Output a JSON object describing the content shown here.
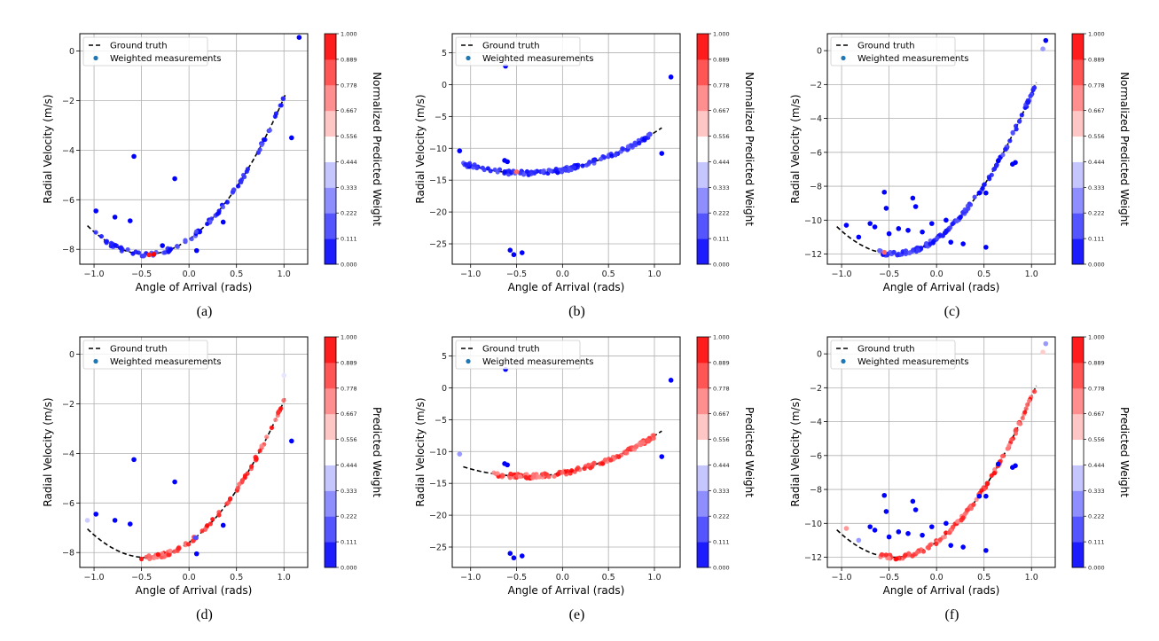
{
  "chart_data": [
    {
      "type": "scatter",
      "caption": "(a)",
      "xlabel": "Angle of Arrival (rads)",
      "ylabel": "Radial Velocity (m/s)",
      "xlim": [
        -1.15,
        1.25
      ],
      "ylim": [
        -8.6,
        0.7
      ],
      "xticks": [
        -1.0,
        -0.5,
        0.0,
        0.5,
        1.0
      ],
      "xtick_labels": [
        "−1.0",
        "−0.5",
        "0.0",
        "0.5",
        "1.0"
      ],
      "yticks": [
        -8,
        -6,
        -4,
        -2,
        0
      ],
      "ytick_labels": [
        "−8",
        "−6",
        "−4",
        "−2",
        "0"
      ],
      "grid": true,
      "legend_location": "top-left",
      "legend": [
        "Ground truth",
        "Weighted measurements"
      ],
      "colorbar_label": "Normalized Predicted Weight",
      "colorbar_ticks": [
        "0.000",
        "0.111",
        "0.222",
        "0.333",
        "0.444",
        "0.556",
        "0.667",
        "0.778",
        "0.889",
        "1.000"
      ],
      "ground_truth": {
        "x_min": -1.07,
        "x_max": 1.02,
        "a": 6.0,
        "b": -0.45,
        "c": -8.2
      },
      "measurement_mode": "low",
      "n_on_curve": 95,
      "on_curve_range": [
        -1.0,
        1.0
      ],
      "highlight_points": [
        {
          "x": -0.37,
          "y": -8.2,
          "w": 1.0
        },
        {
          "x": -0.42,
          "y": -8.22,
          "w": 0.95
        }
      ],
      "outliers": [
        {
          "x": 1.16,
          "y": 0.55,
          "w": 0.0
        },
        {
          "x": 1.08,
          "y": -3.5,
          "w": 0.0
        },
        {
          "x": -0.58,
          "y": -4.25,
          "w": 0.0
        },
        {
          "x": -0.15,
          "y": -5.15,
          "w": 0.0
        },
        {
          "x": -0.98,
          "y": -6.45,
          "w": 0.0
        },
        {
          "x": -0.78,
          "y": -6.7,
          "w": 0.0
        },
        {
          "x": -0.62,
          "y": -6.85,
          "w": 0.0
        },
        {
          "x": 0.36,
          "y": -6.9,
          "w": 0.0
        },
        {
          "x": 0.08,
          "y": -8.05,
          "w": 0.0
        },
        {
          "x": -0.28,
          "y": -7.85,
          "w": 0.0
        }
      ]
    },
    {
      "type": "scatter",
      "caption": "(b)",
      "xlabel": "Angle of Arrival (rads)",
      "ylabel": "Radial Velocity (m/s)",
      "xlim": [
        -1.2,
        1.28
      ],
      "ylim": [
        -28.2,
        8.0
      ],
      "xticks": [
        -1.0,
        -0.5,
        0.0,
        0.5,
        1.0
      ],
      "xtick_labels": [
        "−1.0",
        "−0.5",
        "0.0",
        "0.5",
        "1.0"
      ],
      "yticks": [
        -25,
        -20,
        -15,
        -10,
        -5,
        0,
        5
      ],
      "ytick_labels": [
        "−25",
        "−20",
        "−15",
        "−10",
        "−5",
        "0",
        "5"
      ],
      "grid": true,
      "legend_location": "top-left",
      "legend": [
        "Ground truth",
        "Weighted measurements"
      ],
      "colorbar_label": "Normalized Predicted Weight",
      "colorbar_ticks": [
        "0.000",
        "0.111",
        "0.222",
        "0.333",
        "0.444",
        "0.556",
        "0.667",
        "0.778",
        "0.889",
        "1.000"
      ],
      "ground_truth": {
        "x_min": -1.08,
        "x_max": 1.08,
        "a": 6.5,
        "b": -0.4,
        "c": -13.9
      },
      "measurement_mode": "low",
      "n_on_curve": 130,
      "on_curve_range": [
        -1.1,
        1.0
      ],
      "highlight_points": [
        {
          "x": -0.5,
          "y": -13.7,
          "w": 0.8
        }
      ],
      "outliers": [
        {
          "x": -0.62,
          "y": 2.9,
          "w": 0.0
        },
        {
          "x": 1.18,
          "y": 1.2,
          "w": 0.0
        },
        {
          "x": -1.12,
          "y": -10.4,
          "w": 0.0
        },
        {
          "x": 1.08,
          "y": -10.8,
          "w": 0.0
        },
        {
          "x": -0.63,
          "y": -11.9,
          "w": 0.0
        },
        {
          "x": -0.6,
          "y": -12.1,
          "w": 0.0
        },
        {
          "x": -0.57,
          "y": -26.0,
          "w": 0.0
        },
        {
          "x": -0.53,
          "y": -26.7,
          "w": 0.0
        },
        {
          "x": -0.44,
          "y": -26.4,
          "w": 0.0
        }
      ]
    },
    {
      "type": "scatter",
      "caption": "(c)",
      "xlabel": "Angle of Arrival (rads)",
      "ylabel": "Radial Velocity (m/s)",
      "xlim": [
        -1.15,
        1.25
      ],
      "ylim": [
        -12.6,
        1.0
      ],
      "xticks": [
        -1.0,
        -0.5,
        0.0,
        0.5,
        1.0
      ],
      "xtick_labels": [
        "−1.0",
        "−0.5",
        "0.0",
        "0.5",
        "1.0"
      ],
      "yticks": [
        -12,
        -10,
        -8,
        -6,
        -4,
        -2,
        0
      ],
      "ytick_labels": [
        "−12",
        "−10",
        "−8",
        "−6",
        "−4",
        "−2",
        "0"
      ],
      "grid": true,
      "legend_location": "top-left",
      "legend": [
        "Ground truth",
        "Weighted measurements"
      ],
      "colorbar_label": "Normalized Predicted Weight",
      "colorbar_ticks": [
        "0.000",
        "0.111",
        "0.222",
        "0.333",
        "0.444",
        "0.556",
        "0.667",
        "0.778",
        "0.889",
        "1.000"
      ],
      "ground_truth": {
        "x_min": -1.05,
        "x_max": 1.05,
        "a": 9.0,
        "b": -0.45,
        "c": -12.0
      },
      "measurement_mode": "low",
      "n_on_curve": 130,
      "on_curve_range": [
        -0.6,
        1.05
      ],
      "highlight_points": [
        {
          "x": -0.55,
          "y": -11.9,
          "w": 0.8
        }
      ],
      "outliers": [
        {
          "x": 1.15,
          "y": 0.6,
          "w": 0.0
        },
        {
          "x": 1.12,
          "y": 0.1,
          "w": 0.3
        },
        {
          "x": -0.95,
          "y": -10.3,
          "w": 0.0
        },
        {
          "x": -0.82,
          "y": -11.0,
          "w": 0.0
        },
        {
          "x": -0.7,
          "y": -10.2,
          "w": 0.0
        },
        {
          "x": -0.65,
          "y": -10.4,
          "w": 0.0
        },
        {
          "x": -0.55,
          "y": -8.35,
          "w": 0.0
        },
        {
          "x": -0.53,
          "y": -9.3,
          "w": 0.0
        },
        {
          "x": -0.5,
          "y": -10.8,
          "w": 0.0
        },
        {
          "x": -0.4,
          "y": -10.5,
          "w": 0.0
        },
        {
          "x": -0.25,
          "y": -8.7,
          "w": 0.0
        },
        {
          "x": -0.22,
          "y": -9.2,
          "w": 0.0
        },
        {
          "x": -0.3,
          "y": -10.6,
          "w": 0.0
        },
        {
          "x": -0.15,
          "y": -10.7,
          "w": 0.0
        },
        {
          "x": -0.05,
          "y": -10.2,
          "w": 0.0
        },
        {
          "x": 0.1,
          "y": -10.0,
          "w": 0.0
        },
        {
          "x": 0.15,
          "y": -11.3,
          "w": 0.0
        },
        {
          "x": 0.28,
          "y": -11.4,
          "w": 0.0
        },
        {
          "x": 0.45,
          "y": -8.4,
          "w": 0.0
        },
        {
          "x": 0.52,
          "y": -8.4,
          "w": 0.0
        },
        {
          "x": 0.52,
          "y": -11.6,
          "w": 0.0
        },
        {
          "x": 0.65,
          "y": -6.5,
          "w": 0.0
        },
        {
          "x": 0.8,
          "y": -6.7,
          "w": 0.0
        },
        {
          "x": 0.83,
          "y": -6.6,
          "w": 0.0
        },
        {
          "x": -0.6,
          "y": -11.8,
          "w": 0.2
        },
        {
          "x": -0.45,
          "y": -11.9,
          "w": 0.1
        }
      ]
    },
    {
      "type": "scatter",
      "caption": "(d)",
      "xlabel": "Angle of Arrival (rads)",
      "ylabel": "Radial Velocity (m/s)",
      "xlim": [
        -1.15,
        1.25
      ],
      "ylim": [
        -8.6,
        0.7
      ],
      "xticks": [
        -1.0,
        -0.5,
        0.0,
        0.5,
        1.0
      ],
      "xtick_labels": [
        "−1.0",
        "−0.5",
        "0.0",
        "0.5",
        "1.0"
      ],
      "yticks": [
        -8,
        -6,
        -4,
        -2,
        0
      ],
      "ytick_labels": [
        "−8",
        "−6",
        "−4",
        "−2",
        "0"
      ],
      "grid": true,
      "legend_location": "top-left",
      "legend": [
        "Ground truth",
        "Weighted measurements"
      ],
      "colorbar_label": "Predicted Weight",
      "colorbar_ticks": [
        "0.000",
        "0.111",
        "0.222",
        "0.333",
        "0.444",
        "0.556",
        "0.667",
        "0.778",
        "0.889",
        "1.000"
      ],
      "ground_truth": {
        "x_min": -1.07,
        "x_max": 1.02,
        "a": 6.0,
        "b": -0.45,
        "c": -8.2
      },
      "measurement_mode": "high",
      "n_on_curve": 85,
      "on_curve_range": [
        -0.55,
        1.0
      ],
      "highlight_points": [
        {
          "x": 0.07,
          "y": -7.4,
          "w": 0.15
        }
      ],
      "outliers": [
        {
          "x": 1.08,
          "y": -3.5,
          "w": 0.0
        },
        {
          "x": -0.58,
          "y": -4.25,
          "w": 0.0
        },
        {
          "x": -0.15,
          "y": -5.15,
          "w": 0.0
        },
        {
          "x": -0.98,
          "y": -6.45,
          "w": 0.0
        },
        {
          "x": -0.78,
          "y": -6.7,
          "w": 0.0
        },
        {
          "x": -0.62,
          "y": -6.85,
          "w": 0.0
        },
        {
          "x": 0.36,
          "y": -6.9,
          "w": 0.0
        },
        {
          "x": 0.08,
          "y": -8.05,
          "w": 0.0
        },
        {
          "x": -1.07,
          "y": -6.7,
          "w": 0.4
        },
        {
          "x": 1.0,
          "y": -0.85,
          "w": 0.45
        }
      ]
    },
    {
      "type": "scatter",
      "caption": "(e)",
      "xlabel": "Angle of Arrival (rads)",
      "ylabel": "Radial Velocity (m/s)",
      "xlim": [
        -1.2,
        1.28
      ],
      "ylim": [
        -28.2,
        8.0
      ],
      "xticks": [
        -1.0,
        -0.5,
        0.0,
        0.5,
        1.0
      ],
      "xtick_labels": [
        "−1.0",
        "−0.5",
        "0.0",
        "0.5",
        "1.0"
      ],
      "yticks": [
        -25,
        -20,
        -15,
        -10,
        -5,
        0,
        5
      ],
      "ytick_labels": [
        "−25",
        "−20",
        "−15",
        "−10",
        "−5",
        "0",
        "5"
      ],
      "grid": true,
      "legend_location": "top-left",
      "legend": [
        "Ground truth",
        "Weighted measurements"
      ],
      "colorbar_label": "Predicted Weight",
      "colorbar_ticks": [
        "0.000",
        "0.111",
        "0.222",
        "0.333",
        "0.444",
        "0.556",
        "0.667",
        "0.778",
        "0.889",
        "1.000"
      ],
      "ground_truth": {
        "x_min": -1.08,
        "x_max": 1.08,
        "a": 6.5,
        "b": -0.4,
        "c": -13.9
      },
      "measurement_mode": "high",
      "n_on_curve": 130,
      "on_curve_range": [
        -0.75,
        1.0
      ],
      "highlight_points": [],
      "outliers": [
        {
          "x": -0.62,
          "y": 2.9,
          "w": 0.0
        },
        {
          "x": 1.18,
          "y": 1.2,
          "w": 0.0
        },
        {
          "x": -1.12,
          "y": -10.4,
          "w": 0.3
        },
        {
          "x": 1.08,
          "y": -10.8,
          "w": 0.0
        },
        {
          "x": -0.63,
          "y": -11.9,
          "w": 0.0
        },
        {
          "x": -0.6,
          "y": -12.1,
          "w": 0.0
        },
        {
          "x": -0.57,
          "y": -26.0,
          "w": 0.0
        },
        {
          "x": -0.53,
          "y": -26.7,
          "w": 0.0
        },
        {
          "x": -0.44,
          "y": -26.4,
          "w": 0.0
        }
      ]
    },
    {
      "type": "scatter",
      "caption": "(f)",
      "xlabel": "Angle of Arrival (rads)",
      "ylabel": "Radial Velocity (m/s)",
      "xlim": [
        -1.15,
        1.25
      ],
      "ylim": [
        -12.6,
        1.0
      ],
      "xticks": [
        -1.0,
        -0.5,
        0.0,
        0.5,
        1.0
      ],
      "xtick_labels": [
        "−1.0",
        "−0.5",
        "0.0",
        "0.5",
        "1.0"
      ],
      "yticks": [
        -12,
        -10,
        -8,
        -6,
        -4,
        -2,
        0
      ],
      "ytick_labels": [
        "−12",
        "−10",
        "−8",
        "−6",
        "−4",
        "−2",
        "0"
      ],
      "grid": true,
      "legend_location": "top-left",
      "legend": [
        "Ground truth",
        "Weighted measurements"
      ],
      "colorbar_label": "Predicted Weight",
      "colorbar_ticks": [
        "0.000",
        "0.111",
        "0.222",
        "0.333",
        "0.444",
        "0.556",
        "0.667",
        "0.778",
        "0.889",
        "1.000"
      ],
      "ground_truth": {
        "x_min": -1.05,
        "x_max": 1.05,
        "a": 9.0,
        "b": -0.45,
        "c": -12.0
      },
      "measurement_mode": "high",
      "n_on_curve": 125,
      "on_curve_range": [
        -0.6,
        1.05
      ],
      "highlight_points": [],
      "outliers": [
        {
          "x": 1.15,
          "y": 0.6,
          "w": 0.3
        },
        {
          "x": 1.12,
          "y": 0.1,
          "w": 0.6
        },
        {
          "x": -0.95,
          "y": -10.3,
          "w": 0.7
        },
        {
          "x": -0.82,
          "y": -11.0,
          "w": 0.3
        },
        {
          "x": -0.7,
          "y": -10.2,
          "w": 0.0
        },
        {
          "x": -0.65,
          "y": -10.4,
          "w": 0.0
        },
        {
          "x": -0.55,
          "y": -8.35,
          "w": 0.0
        },
        {
          "x": -0.53,
          "y": -9.3,
          "w": 0.0
        },
        {
          "x": -0.5,
          "y": -10.8,
          "w": 0.0
        },
        {
          "x": -0.4,
          "y": -10.5,
          "w": 0.0
        },
        {
          "x": -0.25,
          "y": -8.7,
          "w": 0.0
        },
        {
          "x": -0.22,
          "y": -9.2,
          "w": 0.0
        },
        {
          "x": -0.3,
          "y": -10.6,
          "w": 0.0
        },
        {
          "x": -0.15,
          "y": -10.7,
          "w": 0.0
        },
        {
          "x": -0.05,
          "y": -10.2,
          "w": 0.0
        },
        {
          "x": 0.1,
          "y": -10.0,
          "w": 0.0
        },
        {
          "x": 0.15,
          "y": -11.3,
          "w": 0.0
        },
        {
          "x": 0.28,
          "y": -11.4,
          "w": 0.0
        },
        {
          "x": 0.45,
          "y": -8.4,
          "w": 0.0
        },
        {
          "x": 0.52,
          "y": -8.4,
          "w": 0.0
        },
        {
          "x": 0.52,
          "y": -11.6,
          "w": 0.0
        },
        {
          "x": 0.65,
          "y": -6.5,
          "w": 0.0
        },
        {
          "x": 0.8,
          "y": -6.7,
          "w": 0.0
        },
        {
          "x": 0.83,
          "y": -6.6,
          "w": 0.0
        }
      ]
    }
  ]
}
